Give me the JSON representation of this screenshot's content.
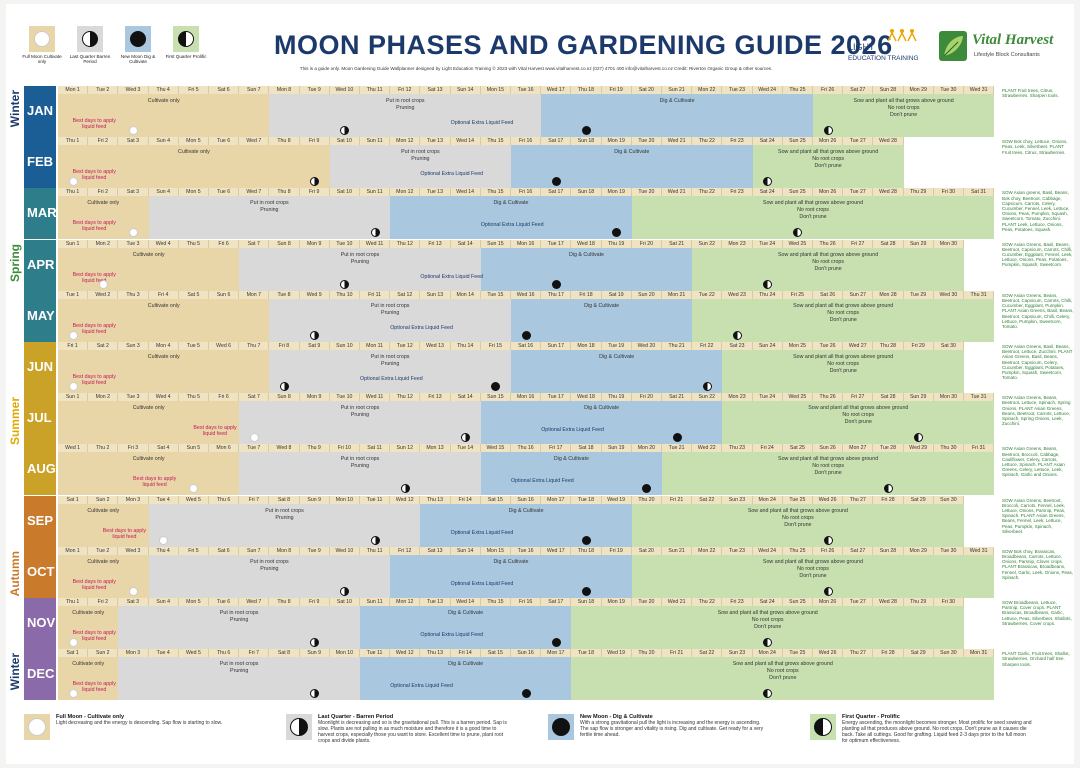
{
  "header": {
    "title": "MOON PHASES AND GARDENING GUIDE 2026",
    "subtitle": "This is a guide only. Moon Gardening Guide Wallplanner designed by Light Education Training © 2023 with Vital Harvest www.vitalharvest.co.nz (027) 4701 400 info@vitalharvest.co.nz Credit: Riverton Organic Group & other sources.",
    "logo1_line1": "LIGHT",
    "logo1_line2": "EDUCATION TRAINING",
    "logo2_line1": "Vital Harvest",
    "logo2_line2": "Lifestyle Block Consultants"
  },
  "legend_top": [
    {
      "phase": "full",
      "color": "#e9d6a8",
      "label": "Full Moon Cultivate only"
    },
    {
      "phase": "last",
      "color": "#d9d9d9",
      "label": "Last Quarter Barren Period"
    },
    {
      "phase": "new",
      "color": "#a9c8df",
      "label": "New Moon Dig & Cultivate"
    },
    {
      "phase": "first",
      "color": "#c8e0b0",
      "label": "First Quarter Prolific"
    }
  ],
  "seasons": [
    {
      "label": "Winter",
      "color": "#1b3a6b",
      "row": 0
    },
    {
      "label": "Spring",
      "color": "#3d8a3a",
      "row": 3
    },
    {
      "label": "Summer",
      "color": "#e0a800",
      "row": 6
    },
    {
      "label": "Autumn",
      "color": "#c97a2b",
      "row": 9
    },
    {
      "label": "Winter",
      "color": "#1b3a6b",
      "row": 11
    }
  ],
  "labels": {
    "cultivate": "Cultivate only",
    "best1": "Best days to apply",
    "best2": "liquid feed",
    "root1": "Put in root crops",
    "root2": "Pruning",
    "feed": "Optional Extra Liquid Feed",
    "dig": "Dig & Cultivate",
    "sow1": "Sow and plant all that grows above ground",
    "sow2": "No root crops",
    "sow3": "Don't prune"
  },
  "months": [
    {
      "name": "JAN",
      "color": "#1b5e96",
      "start": 4,
      "days": 31,
      "phases": [
        7,
        9,
        9,
        6
      ],
      "moons": [
        3,
        10,
        18,
        26
      ],
      "side": "PLANT Fruit trees, Citrus, Strawberries. Sharpen tools."
    },
    {
      "name": "FEB",
      "color": "#1b5e96",
      "start": 0,
      "days": 28,
      "phases": [
        9,
        6,
        8,
        5
      ],
      "moons": [
        1,
        9,
        17,
        24
      ],
      "side": "SOW Bok choy, Lettuce, Onions, Peas, Leek, Silverbeet. PLANT Fruit trees, Citrus, Strawberries."
    },
    {
      "name": "MAR",
      "color": "#2e7d8a",
      "start": 0,
      "days": 31,
      "phases": [
        3,
        8,
        8,
        12
      ],
      "moons": [
        3,
        11,
        19,
        25
      ],
      "side": "SOW Asian greens, Basil, Beans, Bok choy, Beetroot, Cabbage, Capsicum, Carrots, Celery, Cucumber, Fennel, Leek, Lettuce, Onions, Peas, Pumpkin, Squash, Sweetcorn, Tomato, Zucchini. PLANT Leek, Lettuce, Onions, Peas, Potatoes, Squash."
    },
    {
      "name": "APR",
      "color": "#2e7d8a",
      "start": 3,
      "days": 30,
      "phases": [
        6,
        8,
        7,
        9
      ],
      "moons": [
        2,
        10,
        17,
        24
      ],
      "side": "SOW Asian Greens, Basil, Beans, Beetroot, Capsicum, Carrots, Chilli, Cucumber, Eggplant, Fennel, Leek, Lettuce, Onions, Peas, Potatoes, Pumpkin, Squash, Sweetcorn."
    },
    {
      "name": "MAY",
      "color": "#2e7d8a",
      "start": 5,
      "days": 31,
      "phases": [
        7,
        8,
        6,
        10
      ],
      "moons": [
        1,
        9,
        16,
        23
      ],
      "side": "SOW Asian Greens, Beans, Beetroot, Capsicum, Carrots, Chilli, Cucumber, Eggplant, Pumpkin. PLANT Asian Greens, Basil, Beans, Beetroot, Capsicum, Chilli, Celery, Lettuce, Pumpkin, Sweetcorn, Tomato."
    },
    {
      "name": "JUN",
      "color": "#c9a227",
      "start": 1,
      "days": 30,
      "phases": [
        7,
        8,
        7,
        8
      ],
      "moons": [
        1,
        8,
        15,
        22
      ],
      "side": "SOW Asian Greens, Basil, Beans, Beetroot, Lettuce, Zucchini. PLANT Asian Greens, Basil, Beans, Beetroot, Capsicum, Celery, Cucumber, Eggplant, Potatoes, Pumpkin, Squash, Sweetcorn, Tomato."
    },
    {
      "name": "JUL",
      "color": "#c9a227",
      "start": 3,
      "days": 31,
      "phases": [
        6,
        8,
        8,
        9
      ],
      "moons": [
        7,
        14,
        21,
        29
      ],
      "side": "SOW Asian Greens, Beans, Beetroot, Lettuce, Spinach, Spring Onions. PLANT Asian Greens, Beans, Beetroot, Carrots, Lettuce, Spinach, Spring Onions, Leek, Zucchini."
    },
    {
      "name": "AUG",
      "color": "#c9a227",
      "start": 6,
      "days": 31,
      "phases": [
        6,
        8,
        6,
        11
      ],
      "moons": [
        5,
        12,
        20,
        28
      ],
      "side": "SOW Asian Greens, Beans, Beetroot, Broccoli, Cabbage, Cauliflower, Celery, Carrots, Lettuce, Spinach. PLANT Asian Greens, Celery, Lettuce, Leek, Spinach, Garlic and Onions."
    },
    {
      "name": "SEP",
      "color": "#c97a2b",
      "start": 2,
      "days": 30,
      "phases": [
        3,
        9,
        7,
        11
      ],
      "moons": [
        4,
        11,
        18,
        26
      ],
      "side": "SOW Asian Greens, Beetroot, Broccoli, Carrots, Fennel, Leek, Lettuce, Onions, Parsnip, Peas, Spinach. PLANT Asian Greens, Beans, Fennel, Leek, Lettuce, Peas, Pumpkin, Spinach, Silverbeet."
    },
    {
      "name": "OCT",
      "color": "#c97a2b",
      "start": 4,
      "days": 31,
      "phases": [
        3,
        8,
        8,
        12
      ],
      "moons": [
        3,
        10,
        18,
        26
      ],
      "side": "SOW Bok choy, Brassicas, Broadbeans, Carrots, Lettuce, Onions, Parsnip, Clover crops. PLANT Brassicas, Broadbeans, Fennel, Garlic, Leek, Onions, Peas, Spinach."
    },
    {
      "name": "NOV",
      "color": "#8a6aa8",
      "start": 0,
      "days": 30,
      "phases": [
        2,
        8,
        7,
        13
      ],
      "moons": [
        1,
        9,
        17,
        24
      ],
      "side": "SOW Broadbeans, Lettuce, Parsnip, Cover crops. PLANT Brassicas, Broadbeans, Garlic, Lettuce, Peas, Silverbeet, Shallots, Strawberries, Cover crops."
    },
    {
      "name": "DEC",
      "color": "#8a6aa8",
      "start": 2,
      "days": 31,
      "phases": [
        2,
        8,
        7,
        14
      ],
      "moons": [
        1,
        9,
        16,
        24
      ],
      "side": "PLANT Garlic, Fruit trees, Shallot, Strawberries, Orchard half tree. Sharpen tools."
    }
  ],
  "legend_bottom": [
    {
      "phase": "full",
      "color": "#e9d6a8",
      "title": "Full Moon - Cultivate only",
      "text": "Light decreasing and the energy is descending. Sap flow is starting to slow."
    },
    {
      "phase": "last",
      "color": "#d9d9d9",
      "title": "Last Quarter - Barren Period",
      "text": "Moonlight is decreasing and so is the gravitational pull. This is a barren period. Sap is slow. Plants are not pulling in as much moisture and therefore it is a good time to harvest crops, especially those you want to store. Excellent time to prune, plant root crops and divide plants."
    },
    {
      "phase": "new",
      "color": "#a9c8df",
      "title": "New Moon - Dig & Cultivate",
      "text": "With a strong gravitational pull the light is increasing and the energy is ascending. The sap flow is stronger and vitality is rising. Dig and cultivate. Get ready for a very fertile time ahead."
    },
    {
      "phase": "first",
      "color": "#c8e0b0",
      "title": "First Quarter - Prolific",
      "text": "Energy ascending, the moonlight becomes stronger. Most prolific for seed sowing and planting all that produces above ground. No root crops. Don't prune as it causes die back. Take all cuttings. Good for grafting. Liquid feed 2-3 days prior to the full moon for optimum effectiveness."
    }
  ]
}
